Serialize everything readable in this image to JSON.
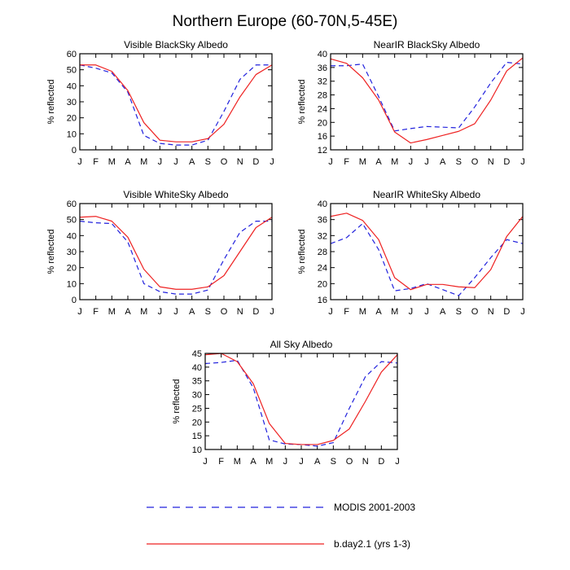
{
  "figure_title": "Northern Europe (60-70N,5-45E)",
  "months": [
    "J",
    "F",
    "M",
    "A",
    "M",
    "J",
    "J",
    "A",
    "S",
    "O",
    "N",
    "D",
    "J"
  ],
  "ylabel": "% reflected",
  "legend": {
    "modis_label": "MODIS 2001-2003",
    "model_label": "b.day2.1 (yrs 1-3)",
    "modis_color": "#2222dd",
    "model_color": "#ee2222"
  },
  "chart_data": [
    {
      "type": "line",
      "title": "Visible BlackSky Albedo",
      "xlabel": "",
      "ylabel": "% reflected",
      "ylim": [
        0,
        60
      ],
      "yticks": [
        0,
        10,
        20,
        30,
        40,
        50,
        60
      ],
      "categories": [
        "J",
        "F",
        "M",
        "A",
        "M",
        "J",
        "J",
        "A",
        "S",
        "O",
        "N",
        "D",
        "J"
      ],
      "series": [
        {
          "name": "MODIS 2001-2003",
          "values": [
            53,
            51,
            48,
            36,
            9,
            4,
            3,
            3,
            6,
            24,
            44,
            53,
            53
          ]
        },
        {
          "name": "b.day2.1 (yrs 1-3)",
          "values": [
            53,
            53,
            49,
            37,
            17,
            6,
            5,
            5,
            7,
            16,
            33,
            47,
            53
          ]
        }
      ]
    },
    {
      "type": "line",
      "title": "NearIR BlackSky Albedo",
      "xlabel": "",
      "ylabel": "% reflected",
      "ylim": [
        12,
        40
      ],
      "yticks": [
        12,
        16,
        20,
        24,
        28,
        32,
        36,
        40
      ],
      "categories": [
        "J",
        "F",
        "M",
        "A",
        "M",
        "J",
        "J",
        "A",
        "S",
        "O",
        "N",
        "D",
        "J"
      ],
      "series": [
        {
          "name": "MODIS 2001-2003",
          "values": [
            36.5,
            36.5,
            37,
            27.5,
            17.5,
            18.2,
            18.8,
            18.6,
            18.4,
            24.5,
            31.5,
            37.5,
            37
          ]
        },
        {
          "name": "b.day2.1 (yrs 1-3)",
          "values": [
            38.5,
            37.2,
            33,
            26.5,
            17.2,
            14,
            15,
            16.2,
            17.4,
            19.6,
            26.5,
            35,
            38.8
          ]
        }
      ]
    },
    {
      "type": "line",
      "title": "Visible WhiteSky Albedo",
      "xlabel": "",
      "ylabel": "% reflected",
      "ylim": [
        0,
        60
      ],
      "yticks": [
        0,
        10,
        20,
        30,
        40,
        50,
        60
      ],
      "categories": [
        "J",
        "F",
        "M",
        "A",
        "M",
        "J",
        "J",
        "A",
        "S",
        "O",
        "N",
        "D",
        "J"
      ],
      "series": [
        {
          "name": "MODIS 2001-2003",
          "values": [
            49,
            48,
            47.5,
            36,
            10,
            5,
            3.5,
            3.5,
            6,
            25,
            42,
            49,
            49
          ]
        },
        {
          "name": "b.day2.1 (yrs 1-3)",
          "values": [
            51.5,
            52,
            49,
            39,
            19,
            8,
            6.5,
            6.5,
            8,
            15,
            30,
            45,
            51.5
          ]
        }
      ]
    },
    {
      "type": "line",
      "title": "NearIR WhiteSky Albedo",
      "xlabel": "",
      "ylabel": "% reflected",
      "ylim": [
        16,
        40
      ],
      "yticks": [
        16,
        20,
        24,
        28,
        32,
        36,
        40
      ],
      "categories": [
        "J",
        "F",
        "M",
        "A",
        "M",
        "J",
        "J",
        "A",
        "S",
        "O",
        "N",
        "D",
        "J"
      ],
      "series": [
        {
          "name": "MODIS 2001-2003",
          "values": [
            30,
            31.5,
            35,
            28.5,
            18.2,
            18.8,
            20,
            18.5,
            17,
            21.5,
            26.5,
            31,
            30
          ]
        },
        {
          "name": "b.day2.1 (yrs 1-3)",
          "values": [
            36.8,
            37.6,
            35.8,
            31,
            21.5,
            18.5,
            19.8,
            19.8,
            19.2,
            19,
            23.5,
            31.8,
            36.8
          ]
        }
      ]
    },
    {
      "type": "line",
      "title": "All Sky Albedo",
      "xlabel": "",
      "ylabel": "% reflected",
      "ylim": [
        10,
        45
      ],
      "yticks": [
        10,
        15,
        20,
        25,
        30,
        35,
        40,
        45
      ],
      "categories": [
        "J",
        "F",
        "M",
        "A",
        "M",
        "J",
        "J",
        "A",
        "S",
        "O",
        "N",
        "D",
        "J"
      ],
      "series": [
        {
          "name": "MODIS 2001-2003",
          "values": [
            41.3,
            41.7,
            42.5,
            32.5,
            13.5,
            12,
            11.8,
            11.2,
            12.5,
            25,
            36.5,
            42,
            41.5
          ]
        },
        {
          "name": "b.day2.1 (yrs 1-3)",
          "values": [
            44.5,
            45,
            42,
            34,
            19.5,
            12.2,
            11.8,
            11.8,
            13.3,
            17.5,
            27.5,
            38.2,
            44.5
          ]
        }
      ]
    }
  ]
}
